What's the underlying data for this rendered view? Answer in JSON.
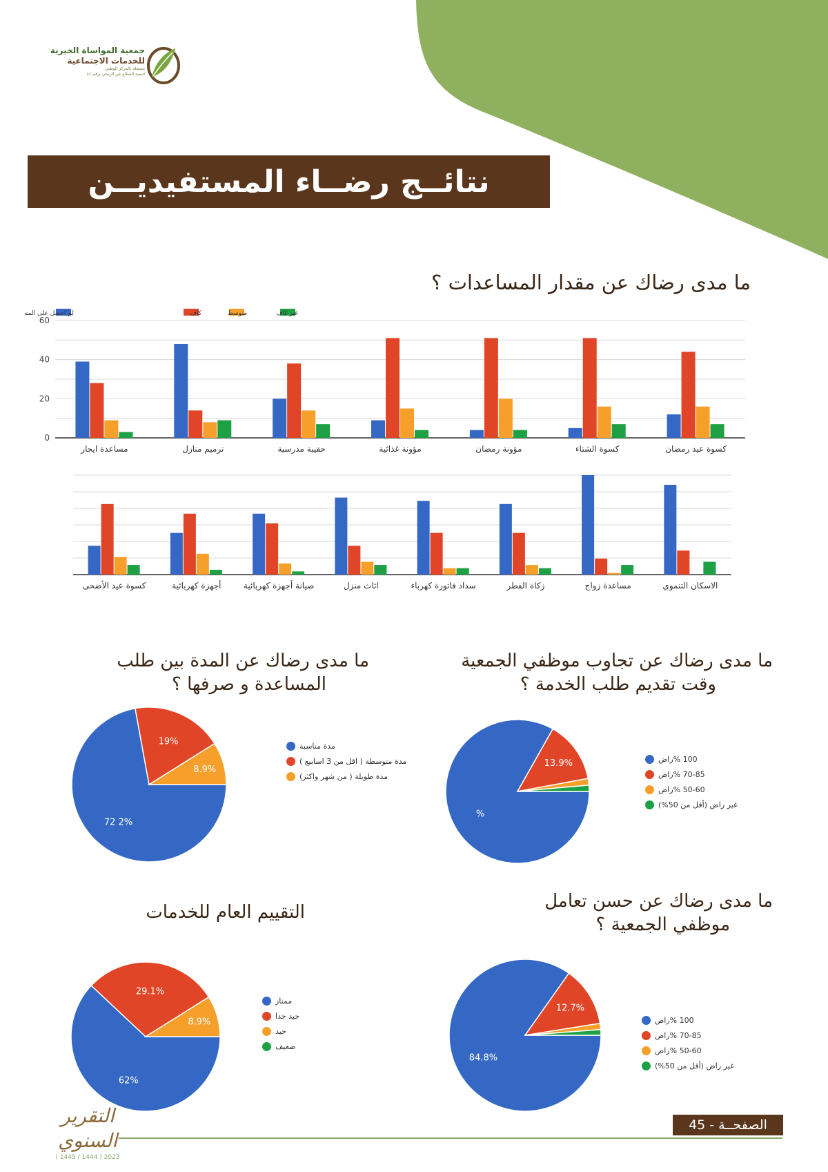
{
  "colors": {
    "blue": "#3568c4",
    "red": "#e04527",
    "orange": "#f6a02b",
    "green": "#1ea145",
    "brown": "#5a361c",
    "olive": "#8fb05e"
  },
  "logo": {
    "line1": "جمعية المواساة الخيرية",
    "line2": "للخدمات الاجتماعية",
    "line3": "مسجلة بالمركز الوطني",
    "line4": "لتنمية القطاع غير الربحي برقم ٤٤",
    "icon": "leaf-emblem-icon"
  },
  "banner_title": "نتائــج رضــاء المستفيديــن",
  "q1": "ما مدى رضاك عن مقدار المساعدات ؟",
  "q2": {
    "l1": "ما مدى رضاك عن تجاوب موظفي الجمعية",
    "l2": "وقت تقديم طلب الخدمة ؟"
  },
  "q3": {
    "l1": "ما مدى رضاك عن المدة بين طلب",
    "l2": "المساعدة و صرفها ؟"
  },
  "q4": {
    "l1": "ما مدى رضاك عن حسن تعامل",
    "l2": "موظفي الجمعية ؟"
  },
  "q5": "التقييم العام للخدمات",
  "chart_data": [
    {
      "type": "bar",
      "legend": [
        "لم احصل على المساعدة ( لم أقدم )",
        "كاف",
        "متوسط",
        "غير كاف"
      ],
      "categories": [
        "مساعدة ايجار",
        "ترميم منازل",
        "حقيبة مدرسية",
        "مؤونة غذائية",
        "مؤونة رمضان",
        "كسوة الشتاء",
        "كسوة عيد رمضان"
      ],
      "series": [
        {
          "values": [
            39,
            48,
            20,
            9,
            4,
            5,
            12
          ]
        },
        {
          "values": [
            28,
            14,
            38,
            51,
            51,
            51,
            44
          ]
        },
        {
          "values": [
            9,
            8,
            14,
            15,
            20,
            16,
            16
          ]
        },
        {
          "values": [
            3,
            9,
            7,
            4,
            4,
            7,
            7
          ]
        }
      ],
      "yticks": [
        "0",
        "20",
        "40",
        "60"
      ],
      "ylim": [
        0,
        60
      ],
      "grid": true
    },
    {
      "type": "bar",
      "categories": [
        "كسوة  عيد الأضحى",
        "أجهزة كهربائية",
        "صيانة أجهزة كهربائية",
        "اثاث منزل",
        "سداد فاتورة كهرباء",
        "زكاة الفطر",
        "مساعدة زواج",
        "الاسكان التنموي"
      ],
      "series": [
        {
          "values": [
            9,
            13,
            19,
            24,
            23,
            22,
            31,
            28
          ]
        },
        {
          "values": [
            22,
            19,
            16,
            9,
            13,
            13,
            5,
            7.5
          ]
        },
        {
          "values": [
            5.5,
            6.5,
            3.5,
            4,
            2,
            3,
            0.5,
            0
          ]
        },
        {
          "values": [
            3,
            1.5,
            1,
            3,
            2,
            2,
            3,
            4
          ]
        }
      ],
      "ylim": [
        0,
        31
      ],
      "grid": true
    },
    {
      "type": "pie",
      "legend": [
        "100 %راض",
        "70-85 %راض",
        "50-60 %راض",
        "غير راض (أقل من 50%)"
      ],
      "values": [
        83.2,
        13.9,
        1.5,
        1.4
      ],
      "labels": [
        "%",
        "13.9%",
        "",
        ""
      ]
    },
    {
      "type": "pie",
      "legend": [
        "مدة مناسبة",
        "مدة متوسطة ( اقل من 3 اسابيع )",
        "مدة طويلة ( من شهر واكثر)"
      ],
      "values": [
        72.2,
        19,
        8.9
      ],
      "labels": [
        "72 2%",
        "19%",
        "8.9%"
      ]
    },
    {
      "type": "pie",
      "legend": [
        "100 %راض",
        "70-85 %راض",
        "50-60 %راض",
        "غير راض (أقل من 50%)"
      ],
      "values": [
        84.8,
        12.7,
        1.3,
        1.2
      ],
      "labels": [
        "84.8%",
        "12.7%",
        "",
        ""
      ]
    },
    {
      "type": "pie",
      "legend": [
        "ممتاز",
        "جيد جدا",
        "جيد",
        "ضعيف"
      ],
      "values": [
        62,
        29.1,
        8.9
      ],
      "labels": [
        "62%",
        "29.1%",
        "8.9%"
      ]
    }
  ],
  "footer": {
    "page_label": "الصفحــة - 45",
    "report_word": "التقرير السنوي",
    "report_year": "( 1445 / 1444 ) 2023"
  }
}
